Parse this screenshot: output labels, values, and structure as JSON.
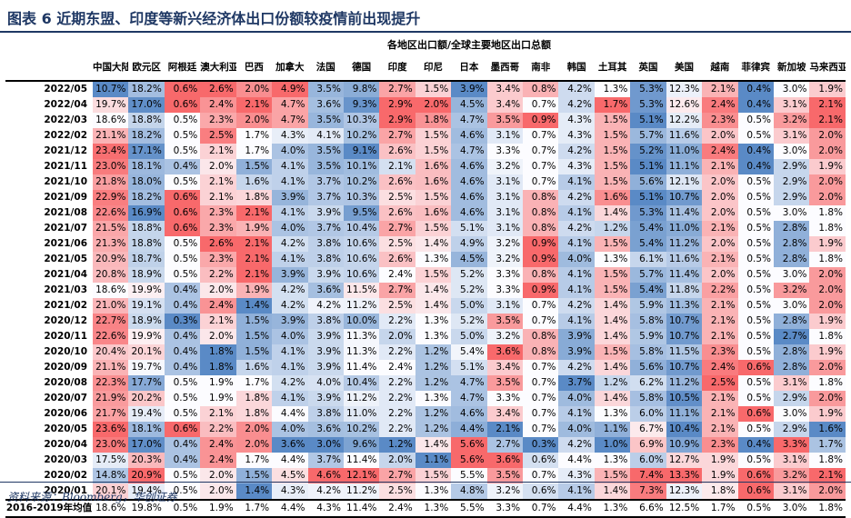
{
  "title": "图表 6   近期东盟、印度等新兴经济体出口份额较疫情前出现提升",
  "table_title": "各地区出口额/全球主要地区出口总额",
  "source": "资料来源：Bloomberg，华创证券",
  "columns": [
    "中国大陆",
    "欧元区",
    "阿根廷",
    "澳大利亚",
    "巴西",
    "加拿大",
    "法国",
    "德国",
    "印度",
    "印尼",
    "日本",
    "墨西哥",
    "南非",
    "韩国",
    "土耳其",
    "英国",
    "美国",
    "越南",
    "菲律宾",
    "新加坡",
    "马来西亚"
  ],
  "colors": {
    "high": "#f8696b",
    "mid": "#fcfcff",
    "low": "#5a8ac6"
  },
  "rows": [
    {
      "label": "2022/05",
      "values": [
        "10.7%",
        "18.2%",
        "0.6%",
        "2.6%",
        "2.0%",
        "4.9%",
        "3.5%",
        "9.8%",
        "2.7%",
        "1.5%",
        "3.9%",
        "3.4%",
        "0.8%",
        "4.2%",
        "1.3%",
        "5.3%",
        "12.3%",
        "2.1%",
        "0.4%",
        "3.0%",
        "1.9%"
      ]
    },
    {
      "label": "2022/04",
      "values": [
        "19.7%",
        "17.0%",
        "0.6%",
        "2.4%",
        "2.1%",
        "4.7%",
        "3.6%",
        "9.3%",
        "2.9%",
        "2.0%",
        "4.5%",
        "3.4%",
        "0.7%",
        "4.2%",
        "1.7%",
        "5.3%",
        "12.6%",
        "2.4%",
        "0.4%",
        "3.1%",
        "2.1%"
      ]
    },
    {
      "label": "2022/03",
      "values": [
        "18.6%",
        "18.8%",
        "0.5%",
        "2.3%",
        "2.0%",
        "4.7%",
        "3.5%",
        "10.3%",
        "2.9%",
        "1.8%",
        "4.7%",
        "3.5%",
        "0.9%",
        "4.3%",
        "1.5%",
        "5.1%",
        "12.2%",
        "2.3%",
        "0.5%",
        "3.2%",
        "2.1%"
      ]
    },
    {
      "label": "2022/02",
      "values": [
        "21.1%",
        "18.2%",
        "0.5%",
        "2.5%",
        "1.7%",
        "4.3%",
        "4.1%",
        "10.2%",
        "2.7%",
        "1.5%",
        "4.6%",
        "3.1%",
        "0.7%",
        "4.3%",
        "1.5%",
        "5.7%",
        "11.6%",
        "2.0%",
        "0.5%",
        "3.1%",
        "2.0%"
      ]
    },
    {
      "label": "2021/12",
      "values": [
        "23.4%",
        "17.1%",
        "0.5%",
        "2.1%",
        "1.7%",
        "4.0%",
        "3.5%",
        "9.1%",
        "2.6%",
        "1.5%",
        "4.7%",
        "3.3%",
        "0.7%",
        "4.2%",
        "1.5%",
        "5.2%",
        "11.0%",
        "2.4%",
        "0.4%",
        "3.0%",
        "2.0%"
      ]
    },
    {
      "label": "2021/11",
      "values": [
        "23.0%",
        "18.1%",
        "0.4%",
        "2.0%",
        "1.5%",
        "4.1%",
        "3.5%",
        "10.1%",
        "2.1%",
        "1.6%",
        "4.6%",
        "3.2%",
        "0.7%",
        "4.3%",
        "1.5%",
        "5.1%",
        "11.1%",
        "2.1%",
        "0.4%",
        "2.9%",
        "1.9%"
      ]
    },
    {
      "label": "2021/10",
      "values": [
        "21.8%",
        "18.0%",
        "0.5%",
        "2.1%",
        "1.6%",
        "4.1%",
        "3.7%",
        "10.2%",
        "2.6%",
        "1.6%",
        "4.6%",
        "3.1%",
        "0.7%",
        "4.1%",
        "1.5%",
        "5.6%",
        "12.1%",
        "2.0%",
        "0.5%",
        "2.9%",
        "2.0%"
      ]
    },
    {
      "label": "2021/09",
      "values": [
        "22.9%",
        "18.2%",
        "0.6%",
        "2.1%",
        "1.8%",
        "3.9%",
        "3.7%",
        "10.3%",
        "2.5%",
        "1.5%",
        "4.6%",
        "3.1%",
        "0.8%",
        "4.2%",
        "1.6%",
        "5.1%",
        "10.7%",
        "2.0%",
        "0.5%",
        "2.9%",
        "2.0%"
      ]
    },
    {
      "label": "2021/08",
      "values": [
        "22.6%",
        "16.9%",
        "0.6%",
        "2.3%",
        "2.1%",
        "4.1%",
        "3.9%",
        "9.5%",
        "2.6%",
        "1.6%",
        "4.6%",
        "3.1%",
        "0.8%",
        "4.1%",
        "1.4%",
        "5.3%",
        "11.4%",
        "2.0%",
        "0.5%",
        "3.0%",
        "1.8%"
      ]
    },
    {
      "label": "2021/07",
      "values": [
        "21.5%",
        "18.8%",
        "0.6%",
        "2.3%",
        "1.9%",
        "4.0%",
        "3.7%",
        "10.4%",
        "2.7%",
        "1.5%",
        "5.1%",
        "3.1%",
        "0.8%",
        "4.2%",
        "1.2%",
        "5.4%",
        "11.0%",
        "2.1%",
        "0.5%",
        "2.8%",
        "1.8%"
      ]
    },
    {
      "label": "2021/06",
      "values": [
        "21.3%",
        "18.8%",
        "0.5%",
        "2.6%",
        "2.1%",
        "4.2%",
        "3.8%",
        "10.6%",
        "2.5%",
        "1.4%",
        "4.9%",
        "3.2%",
        "0.9%",
        "4.1%",
        "1.5%",
        "5.4%",
        "11.2%",
        "2.0%",
        "0.5%",
        "2.8%",
        "1.9%"
      ]
    },
    {
      "label": "2021/05",
      "values": [
        "20.9%",
        "18.7%",
        "0.5%",
        "2.3%",
        "2.1%",
        "4.1%",
        "3.8%",
        "10.6%",
        "2.6%",
        "1.3%",
        "4.5%",
        "3.2%",
        "0.9%",
        "4.0%",
        "1.3%",
        "6.1%",
        "11.6%",
        "2.1%",
        "0.5%",
        "2.8%",
        "1.8%"
      ]
    },
    {
      "label": "2021/04",
      "values": [
        "20.8%",
        "18.9%",
        "0.5%",
        "2.2%",
        "2.1%",
        "3.9%",
        "3.9%",
        "10.6%",
        "2.4%",
        "1.5%",
        "5.2%",
        "3.3%",
        "0.8%",
        "4.1%",
        "1.5%",
        "5.7%",
        "11.4%",
        "2.0%",
        "0.5%",
        "3.0%",
        "2.0%"
      ]
    },
    {
      "label": "2021/03",
      "values": [
        "18.6%",
        "19.9%",
        "0.4%",
        "2.0%",
        "1.9%",
        "4.2%",
        "3.6%",
        "11.5%",
        "2.7%",
        "1.4%",
        "5.2%",
        "3.3%",
        "0.9%",
        "4.1%",
        "1.5%",
        "5.4%",
        "11.8%",
        "2.2%",
        "0.5%",
        "3.2%",
        "2.0%"
      ]
    },
    {
      "label": "2021/02",
      "values": [
        "21.0%",
        "19.1%",
        "0.4%",
        "2.4%",
        "1.4%",
        "4.2%",
        "4.2%",
        "11.2%",
        "2.5%",
        "1.4%",
        "5.0%",
        "3.1%",
        "0.7%",
        "4.2%",
        "1.4%",
        "5.9%",
        "11.3%",
        "2.1%",
        "0.5%",
        "3.0%",
        "2.0%"
      ]
    },
    {
      "label": "2020/12",
      "values": [
        "22.7%",
        "18.9%",
        "0.3%",
        "2.1%",
        "1.5%",
        "3.9%",
        "3.8%",
        "10.0%",
        "2.2%",
        "1.3%",
        "5.2%",
        "3.5%",
        "0.7%",
        "4.1%",
        "1.4%",
        "5.8%",
        "10.7%",
        "2.1%",
        "0.5%",
        "2.8%",
        "1.9%"
      ]
    },
    {
      "label": "2020/11",
      "values": [
        "22.6%",
        "19.9%",
        "0.4%",
        "2.0%",
        "1.5%",
        "4.0%",
        "3.9%",
        "11.3%",
        "2.0%",
        "1.3%",
        "5.0%",
        "3.2%",
        "0.8%",
        "3.9%",
        "1.4%",
        "5.9%",
        "10.7%",
        "2.1%",
        "0.5%",
        "2.7%",
        "1.8%"
      ]
    },
    {
      "label": "2020/10",
      "values": [
        "20.4%",
        "20.1%",
        "0.4%",
        "1.8%",
        "1.5%",
        "4.1%",
        "3.9%",
        "11.3%",
        "2.2%",
        "1.2%",
        "5.4%",
        "3.6%",
        "0.8%",
        "3.9%",
        "1.5%",
        "5.8%",
        "11.5%",
        "2.3%",
        "0.5%",
        "2.8%",
        "1.9%"
      ]
    },
    {
      "label": "2020/09",
      "values": [
        "21.1%",
        "19.7%",
        "0.4%",
        "1.8%",
        "1.6%",
        "4.1%",
        "3.9%",
        "11.4%",
        "2.4%",
        "1.2%",
        "5.1%",
        "3.4%",
        "0.7%",
        "4.2%",
        "1.4%",
        "5.6%",
        "10.7%",
        "2.4%",
        "0.6%",
        "2.8%",
        "2.0%"
      ]
    },
    {
      "label": "2020/08",
      "values": [
        "22.3%",
        "17.7%",
        "0.5%",
        "1.9%",
        "1.7%",
        "4.2%",
        "4.0%",
        "10.4%",
        "2.2%",
        "1.2%",
        "4.7%",
        "3.5%",
        "0.7%",
        "3.7%",
        "1.2%",
        "6.2%",
        "11.2%",
        "2.5%",
        "0.5%",
        "3.1%",
        "1.8%"
      ]
    },
    {
      "label": "2020/07",
      "values": [
        "21.9%",
        "20.2%",
        "0.5%",
        "1.9%",
        "1.8%",
        "4.1%",
        "3.9%",
        "11.2%",
        "2.2%",
        "1.3%",
        "4.7%",
        "3.3%",
        "0.7%",
        "4.0%",
        "1.4%",
        "5.8%",
        "10.5%",
        "2.1%",
        "0.5%",
        "2.9%",
        "2.0%"
      ]
    },
    {
      "label": "2020/06",
      "values": [
        "21.7%",
        "19.4%",
        "0.5%",
        "2.1%",
        "1.8%",
        "4.4%",
        "3.8%",
        "11.0%",
        "2.2%",
        "1.2%",
        "4.6%",
        "3.4%",
        "0.7%",
        "4.1%",
        "1.3%",
        "6.0%",
        "11.1%",
        "2.1%",
        "0.6%",
        "3.0%",
        "1.9%"
      ]
    },
    {
      "label": "2020/05",
      "values": [
        "23.6%",
        "18.1%",
        "0.6%",
        "2.2%",
        "2.0%",
        "4.0%",
        "3.6%",
        "10.2%",
        "2.2%",
        "1.2%",
        "4.4%",
        "2.1%",
        "0.7%",
        "4.0%",
        "1.1%",
        "6.7%",
        "10.4%",
        "2.1%",
        "0.5%",
        "2.9%",
        "1.6%"
      ]
    },
    {
      "label": "2020/04",
      "values": [
        "23.0%",
        "17.0%",
        "0.4%",
        "2.4%",
        "2.0%",
        "3.6%",
        "3.0%",
        "9.6%",
        "1.2%",
        "1.4%",
        "5.6%",
        "2.7%",
        "0.3%",
        "4.2%",
        "1.0%",
        "6.9%",
        "10.9%",
        "2.3%",
        "0.4%",
        "3.3%",
        "1.7%"
      ]
    },
    {
      "label": "2020/03",
      "values": [
        "17.5%",
        "20.3%",
        "0.4%",
        "2.4%",
        "1.7%",
        "4.4%",
        "3.7%",
        "11.4%",
        "2.0%",
        "1.1%",
        "5.6%",
        "3.6%",
        "0.6%",
        "4.4%",
        "1.3%",
        "6.0%",
        "12.7%",
        "1.9%",
        "0.5%",
        "3.1%",
        "1.8%"
      ]
    },
    {
      "label": "2020/02",
      "values": [
        "14.8%",
        "20.9%",
        "0.5%",
        "2.0%",
        "1.5%",
        "4.5%",
        "4.6%",
        "12.1%",
        "2.7%",
        "1.5%",
        "5.5%",
        "3.5%",
        "0.7%",
        "4.3%",
        "1.5%",
        "7.4%",
        "13.3%",
        "1.9%",
        "0.6%",
        "3.2%",
        "2.1%"
      ]
    },
    {
      "label": "2020/01",
      "values": [
        "20.1%",
        "19.4%",
        "0.5%",
        "2.0%",
        "1.4%",
        "4.3%",
        "4.2%",
        "11.2%",
        "2.5%",
        "1.3%",
        "4.8%",
        "3.2%",
        "0.6%",
        "4.1%",
        "1.4%",
        "7.3%",
        "12.3%",
        "1.8%",
        "0.6%",
        "3.1%",
        "2.0%"
      ]
    }
  ],
  "average": {
    "label": "2016-2019年均值",
    "values": [
      "18.6%",
      "19.8%",
      "0.5%",
      "1.9%",
      "1.7%",
      "4.4%",
      "4.3%",
      "11.4%",
      "2.4%",
      "1.3%",
      "5.5%",
      "3.3%",
      "0.7%",
      "4.4%",
      "1.3%",
      "6.6%",
      "12.5%",
      "1.7%",
      "0.5%",
      "3.0%",
      "1.8%"
    ]
  }
}
